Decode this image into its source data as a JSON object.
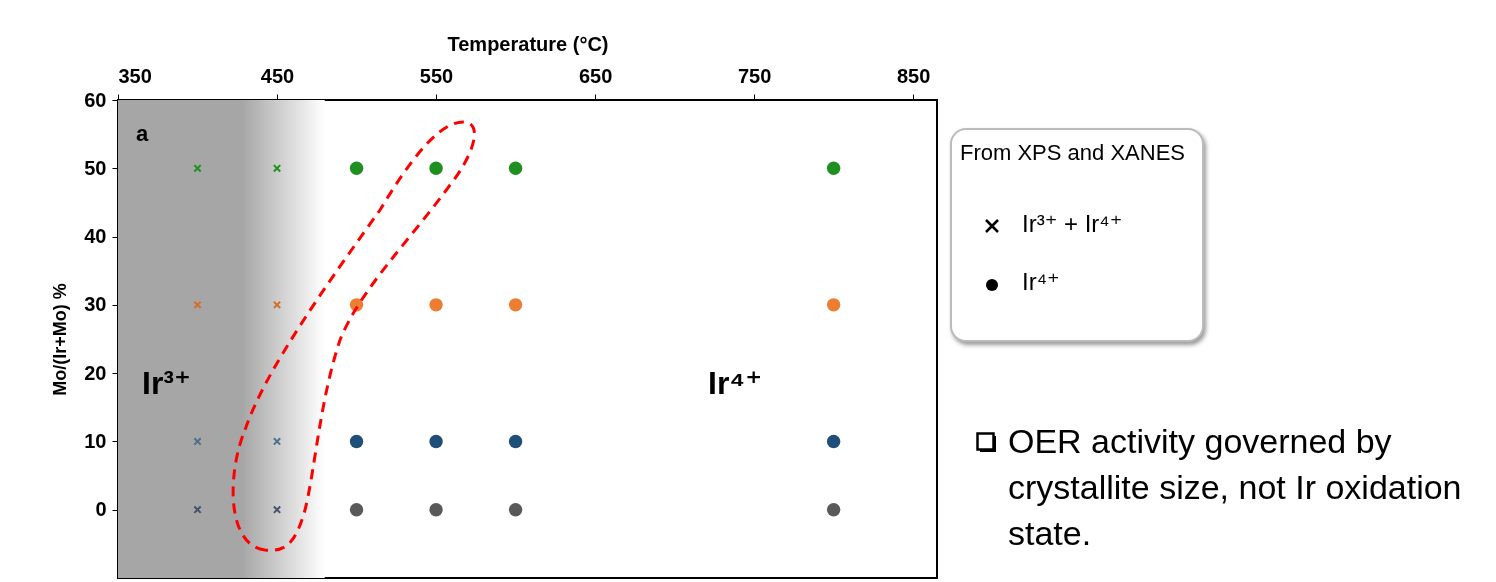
{
  "chart_data": {
    "type": "scatter",
    "xlabel": "Temperature (°C)",
    "ylabel": "Mo/(Ir+Mo) %",
    "xlim": [
      350,
      865
    ],
    "xticks": [
      350,
      450,
      550,
      650,
      750,
      850
    ],
    "ylim": [
      -10,
      60
    ],
    "yticks": [
      0,
      10,
      20,
      30,
      40,
      50,
      60
    ],
    "grid": false,
    "bands": [
      {
        "axis": "x",
        "from": 350,
        "to": 480,
        "color": "#a6a6a6"
      }
    ],
    "annotations": [
      "a",
      "Ir³⁺",
      "Ir⁴⁺",
      "From XPS and XANES",
      "Ir³⁺ + Ir⁴⁺",
      "Ir⁴⁺",
      "OER activity governed by crystallite size, not Ir oxidation state."
    ],
    "series": [
      {
        "marker": "cross",
        "x": [
          400,
          400,
          400,
          400,
          450,
          450,
          450,
          450
        ],
        "values": [
          50,
          30,
          10,
          0,
          50,
          30,
          10,
          0
        ],
        "colors": [
          "#1f8f1f",
          "#d0702c",
          "#4f6f8f",
          "#44546a",
          "#1f8f1f",
          "#d0702c",
          "#4f6f8f",
          "#44546a"
        ]
      },
      {
        "marker": "circle",
        "x": [
          500,
          500,
          500,
          500,
          550,
          550,
          550,
          550,
          600,
          600,
          600,
          600,
          800,
          800,
          800,
          800
        ],
        "values": [
          50,
          30,
          10,
          0,
          50,
          30,
          10,
          0,
          50,
          30,
          10,
          0,
          50,
          30,
          10,
          0
        ],
        "colors": [
          "#1f8f1f",
          "#ed7d31",
          "#1f4e79",
          "#595959",
          "#1f8f1f",
          "#ed7d31",
          "#1f4e79",
          "#595959",
          "#1f8f1f",
          "#ed7d31",
          "#1f4e79",
          "#595959",
          "#1f8f1f",
          "#ed7d31",
          "#1f4e79",
          "#595959"
        ]
      }
    ]
  }
}
